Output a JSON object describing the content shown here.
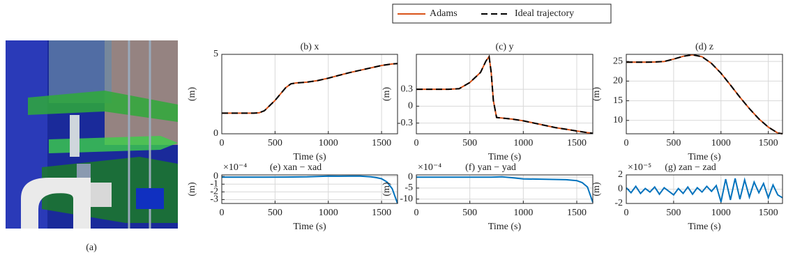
{
  "figure_caption": "(a)",
  "chart_data": [
    {
      "type": "line",
      "title": "(b) x",
      "xlabel": "Time (s)",
      "ylabel": "(m)",
      "grid": true,
      "xlim": [
        0,
        1650
      ],
      "xticks": [
        0,
        500,
        1000,
        1500
      ],
      "ylim": [
        0,
        5
      ],
      "yticks": [
        0,
        5
      ],
      "x": [
        0,
        100,
        200,
        300,
        350,
        400,
        500,
        600,
        650,
        700,
        800,
        900,
        1000,
        1100,
        1200,
        1300,
        1400,
        1500,
        1600,
        1650
      ],
      "series": [
        {
          "name": "Adams",
          "color": "#d95319",
          "values": [
            1.3,
            1.3,
            1.3,
            1.3,
            1.32,
            1.45,
            2.1,
            2.9,
            3.15,
            3.2,
            3.25,
            3.35,
            3.5,
            3.68,
            3.85,
            4.0,
            4.15,
            4.3,
            4.4,
            4.42
          ]
        },
        {
          "name": "Ideal trajectory",
          "color": "#000000",
          "values": [
            1.3,
            1.3,
            1.3,
            1.3,
            1.32,
            1.45,
            2.1,
            2.9,
            3.15,
            3.2,
            3.25,
            3.35,
            3.5,
            3.68,
            3.85,
            4.0,
            4.15,
            4.3,
            4.4,
            4.42
          ]
        }
      ]
    },
    {
      "type": "line",
      "title": "(c) y",
      "xlabel": "Time (s)",
      "ylabel": "(m)",
      "grid": true,
      "xlim": [
        0,
        1650
      ],
      "xticks": [
        0,
        500,
        1000,
        1500
      ],
      "ylim": [
        -0.49,
        0.92
      ],
      "yticks": [
        -0.3,
        0,
        0.3
      ],
      "x": [
        0,
        100,
        200,
        300,
        400,
        500,
        600,
        650,
        680,
        700,
        720,
        750,
        800,
        900,
        1000,
        1100,
        1200,
        1300,
        1400,
        1500,
        1600,
        1650
      ],
      "series": [
        {
          "name": "Adams",
          "color": "#d95319",
          "values": [
            0.3,
            0.3,
            0.3,
            0.3,
            0.31,
            0.42,
            0.6,
            0.8,
            0.88,
            0.6,
            0.1,
            -0.2,
            -0.21,
            -0.23,
            -0.26,
            -0.3,
            -0.34,
            -0.38,
            -0.41,
            -0.44,
            -0.47,
            -0.48
          ]
        },
        {
          "name": "Ideal trajectory",
          "color": "#000000",
          "values": [
            0.3,
            0.3,
            0.3,
            0.3,
            0.31,
            0.42,
            0.6,
            0.8,
            0.88,
            0.6,
            0.1,
            -0.2,
            -0.21,
            -0.23,
            -0.26,
            -0.3,
            -0.34,
            -0.38,
            -0.41,
            -0.44,
            -0.47,
            -0.48
          ]
        }
      ]
    },
    {
      "type": "line",
      "title": "(d) z",
      "xlabel": "Time (s)",
      "ylabel": "(m)",
      "grid": true,
      "xlim": [
        0,
        1650
      ],
      "xticks": [
        0,
        500,
        1000,
        1500
      ],
      "ylim": [
        6.6,
        26.8
      ],
      "yticks": [
        10,
        15,
        20,
        25
      ],
      "x": [
        0,
        100,
        200,
        300,
        400,
        500,
        600,
        700,
        800,
        900,
        1000,
        1100,
        1200,
        1300,
        1400,
        1500,
        1600,
        1650
      ],
      "series": [
        {
          "name": "Adams",
          "color": "#d95319",
          "values": [
            24.8,
            24.8,
            24.8,
            24.85,
            25.0,
            25.6,
            26.3,
            26.7,
            26.2,
            24.5,
            22.0,
            19.0,
            15.9,
            13.0,
            10.4,
            8.3,
            6.8,
            6.6
          ]
        },
        {
          "name": "Ideal trajectory",
          "color": "#000000",
          "values": [
            24.8,
            24.8,
            24.8,
            24.85,
            25.0,
            25.6,
            26.3,
            26.7,
            26.2,
            24.5,
            22.0,
            19.0,
            15.9,
            13.0,
            10.4,
            8.3,
            6.8,
            6.6
          ]
        }
      ]
    },
    {
      "type": "line",
      "title": "(e) xan − xad",
      "scale_label": "×10⁻⁴",
      "xlabel": "Time (s)",
      "ylabel": "(m)",
      "grid": true,
      "xlim": [
        0,
        1650
      ],
      "xticks": [
        0,
        500,
        1000,
        1500
      ],
      "ylim": [
        -3.5,
        0.2
      ],
      "yticks": [
        -3,
        -2,
        -1,
        0
      ],
      "x": [
        0,
        200,
        400,
        600,
        800,
        900,
        1000,
        1100,
        1200,
        1300,
        1400,
        1450,
        1500,
        1550,
        1600,
        1650
      ],
      "series": [
        {
          "color": "#0072bd",
          "values": [
            -0.1,
            -0.1,
            -0.1,
            -0.08,
            -0.05,
            0.0,
            0.05,
            0.03,
            0.05,
            0.05,
            -0.05,
            -0.15,
            -0.3,
            -0.7,
            -1.6,
            -3.5
          ]
        }
      ]
    },
    {
      "type": "line",
      "title": "(f) yan − yad",
      "scale_label": "×10⁻⁴",
      "xlabel": "Time (s)",
      "ylabel": "(m)",
      "grid": true,
      "xlim": [
        0,
        1650
      ],
      "xticks": [
        0,
        500,
        1000,
        1500
      ],
      "ylim": [
        -12,
        1
      ],
      "yticks": [
        -10,
        -5,
        0
      ],
      "x": [
        0,
        200,
        400,
        600,
        700,
        800,
        900,
        1000,
        1200,
        1400,
        1500,
        1550,
        1600,
        1650
      ],
      "series": [
        {
          "color": "#0072bd",
          "values": [
            0,
            0,
            0,
            0,
            0,
            0.1,
            -0.3,
            -0.8,
            -1.0,
            -1.2,
            -1.6,
            -2.5,
            -4.5,
            -11.5
          ]
        }
      ]
    },
    {
      "type": "line",
      "title": "(g) zan − zad",
      "scale_label": "×10⁻⁵",
      "xlabel": "Time (s)",
      "ylabel": "(m)",
      "grid": true,
      "xlim": [
        0,
        1650
      ],
      "xticks": [
        0,
        500,
        1000,
        1500
      ],
      "ylim": [
        -2,
        2
      ],
      "yticks": [
        -2,
        0,
        2
      ],
      "x": [
        0,
        50,
        100,
        150,
        200,
        250,
        300,
        350,
        400,
        450,
        500,
        550,
        600,
        650,
        700,
        750,
        800,
        850,
        900,
        950,
        1000,
        1050,
        1100,
        1150,
        1200,
        1250,
        1300,
        1350,
        1400,
        1450,
        1500,
        1550,
        1600,
        1650
      ],
      "series": [
        {
          "color": "#0072bd",
          "values": [
            0.2,
            -0.5,
            0.4,
            -0.6,
            0.1,
            -0.4,
            0.3,
            -0.7,
            0.2,
            -0.3,
            -0.8,
            0.1,
            -0.6,
            0.3,
            -0.7,
            0.2,
            -0.4,
            0.4,
            -0.3,
            0.5,
            -1.8,
            1.4,
            -1.5,
            1.5,
            -1.4,
            1.3,
            -1.1,
            1.0,
            -0.5,
            0.8,
            -1.2,
            0.6,
            -0.8,
            -1.2
          ]
        }
      ]
    }
  ]
}
